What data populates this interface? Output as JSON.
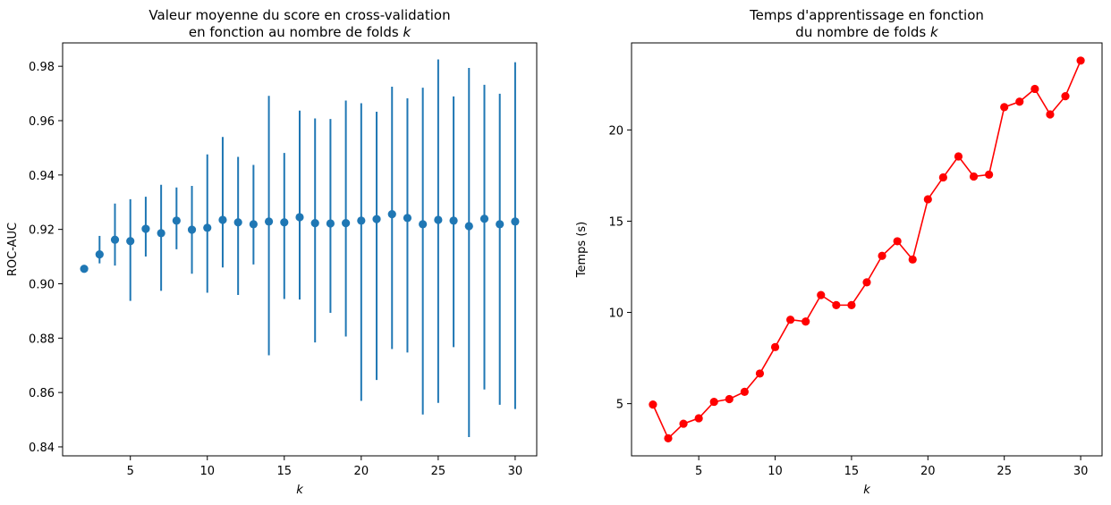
{
  "chart_data": [
    {
      "type": "scatter",
      "title_lines": [
        "Valeur moyenne du score en cross-validation",
        "en fonction au nombre de folds"
      ],
      "title_var": "k",
      "xlabel": "k",
      "ylabel": "ROC-AUC",
      "xlim": [
        0.6,
        31.4
      ],
      "ylim": [
        0.8367,
        0.9886
      ],
      "xticks": [
        5,
        10,
        15,
        20,
        25,
        30
      ],
      "yticks": [
        0.84,
        0.86,
        0.88,
        0.9,
        0.92,
        0.94,
        0.96,
        0.98
      ],
      "ytick_labels": [
        "0.84",
        "0.86",
        "0.88",
        "0.90",
        "0.92",
        "0.94",
        "0.96",
        "0.98"
      ],
      "color": "#1f77b4",
      "error_bars": true,
      "x": [
        2,
        3,
        4,
        5,
        6,
        7,
        8,
        9,
        10,
        11,
        12,
        13,
        14,
        15,
        16,
        17,
        18,
        19,
        20,
        21,
        22,
        23,
        24,
        25,
        26,
        27,
        28,
        29,
        30
      ],
      "y": [
        0.9055,
        0.9108,
        0.9162,
        0.9157,
        0.9202,
        0.9186,
        0.9232,
        0.9199,
        0.9206,
        0.9235,
        0.9226,
        0.9219,
        0.9229,
        0.9226,
        0.9245,
        0.9223,
        0.9222,
        0.9223,
        0.9232,
        0.9238,
        0.9256,
        0.9242,
        0.9219,
        0.9235,
        0.9232,
        0.9212,
        0.9239,
        0.9219,
        0.9229
      ],
      "err_low": [
        0.9047,
        0.9075,
        0.9067,
        0.8937,
        0.91,
        0.8974,
        0.9127,
        0.9037,
        0.8967,
        0.906,
        0.8959,
        0.9071,
        0.8737,
        0.8944,
        0.8942,
        0.8784,
        0.8893,
        0.8806,
        0.8569,
        0.8646,
        0.876,
        0.8747,
        0.8519,
        0.8562,
        0.8767,
        0.8436,
        0.8611,
        0.8555,
        0.8539
      ],
      "err_high": [
        0.9063,
        0.9176,
        0.9295,
        0.9311,
        0.932,
        0.9364,
        0.9354,
        0.936,
        0.9476,
        0.954,
        0.9467,
        0.9437,
        0.9691,
        0.9481,
        0.9637,
        0.9608,
        0.9606,
        0.9674,
        0.9664,
        0.9633,
        0.9725,
        0.9682,
        0.9721,
        0.9825,
        0.9689,
        0.9794,
        0.9732,
        0.9699,
        0.9815
      ]
    },
    {
      "type": "line",
      "title_lines": [
        "Temps d'apprentissage en fonction",
        "du nombre de folds"
      ],
      "title_var": "k",
      "xlabel": "k",
      "ylabel": "Temps (s)",
      "xlim": [
        0.6,
        31.4
      ],
      "ylim": [
        2.14,
        24.77
      ],
      "xticks": [
        5,
        10,
        15,
        20,
        25,
        30
      ],
      "yticks": [
        5,
        10,
        15,
        20
      ],
      "ytick_labels": [
        "5",
        "10",
        "15",
        "20"
      ],
      "color": "#ff0000",
      "marker": "circle",
      "x": [
        2,
        3,
        4,
        5,
        6,
        7,
        8,
        9,
        10,
        11,
        12,
        13,
        14,
        15,
        16,
        17,
        18,
        19,
        20,
        21,
        22,
        23,
        24,
        25,
        26,
        27,
        28,
        29,
        30
      ],
      "y": [
        4.95,
        3.1,
        3.9,
        4.2,
        5.1,
        5.25,
        5.65,
        6.65,
        8.1,
        9.6,
        9.5,
        10.95,
        10.4,
        10.4,
        11.65,
        13.1,
        13.9,
        12.9,
        16.2,
        17.4,
        18.55,
        17.45,
        17.55,
        21.25,
        21.55,
        22.25,
        20.85,
        21.85,
        23.8
      ]
    }
  ]
}
